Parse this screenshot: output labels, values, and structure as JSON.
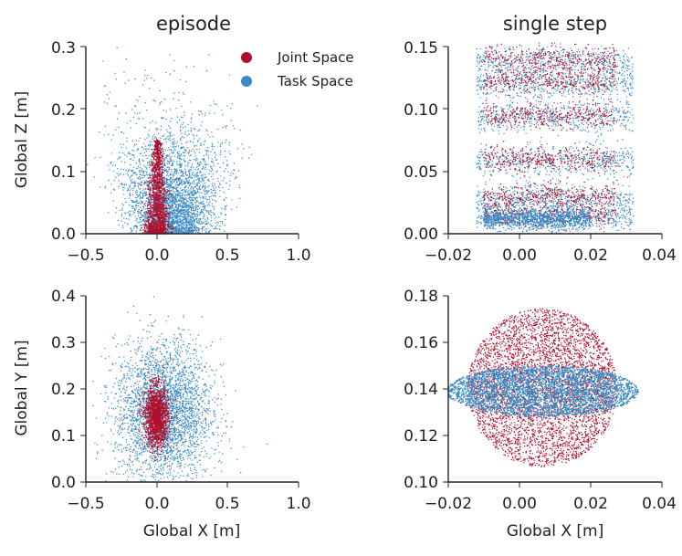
{
  "colors": {
    "joint": "#b0102e",
    "task": "#3a8bc4",
    "axis": "#222222"
  },
  "legend": [
    {
      "label": "Joint Space",
      "color": "#b0102e"
    },
    {
      "label": "Task Space",
      "color": "#3a8bc4"
    }
  ],
  "chart_data": [
    {
      "type": "scatter",
      "title": "episode",
      "xlabel": "",
      "ylabel": "Global Z [m]",
      "xlim": [
        -0.5,
        1.0
      ],
      "ylim": [
        0.0,
        0.3
      ],
      "xticks": [
        "−0.5",
        "0.0",
        "0.5",
        "1.0"
      ],
      "xtick_values": [
        -0.5,
        0.0,
        0.5,
        1.0
      ],
      "yticks": [
        "0.0",
        "0.1",
        "0.2",
        "0.3"
      ],
      "ytick_values": [
        0.0,
        0.1,
        0.2,
        0.3
      ],
      "legend": "top-right",
      "series": [
        {
          "name": "Task Space",
          "color": "#3a8bc4",
          "approx_center": [
            0.08,
            0.05
          ],
          "approx_spread": [
            0.2,
            0.08
          ]
        },
        {
          "name": "Joint Space",
          "color": "#b0102e",
          "approx_center": [
            0.0,
            0.04
          ],
          "approx_spread": [
            0.05,
            0.05
          ]
        }
      ]
    },
    {
      "type": "scatter",
      "title": "single step",
      "xlabel": "",
      "ylabel": "",
      "xlim": [
        -0.02,
        0.04
      ],
      "ylim": [
        0.0,
        0.15
      ],
      "xticks": [
        "−0.02",
        "0.00",
        "0.02",
        "0.04"
      ],
      "xtick_values": [
        -0.02,
        0.0,
        0.02,
        0.04
      ],
      "yticks": [
        "0.00",
        "0.05",
        "0.10",
        "0.15"
      ],
      "ytick_values": [
        0.0,
        0.05,
        0.1,
        0.15
      ],
      "bands_z": [
        0.013,
        0.028,
        0.058,
        0.093,
        0.12,
        0.138
      ],
      "series": [
        {
          "name": "Task Space",
          "color": "#3a8bc4",
          "approx_x_range": [
            -0.012,
            0.032
          ]
        },
        {
          "name": "Joint Space",
          "color": "#b0102e",
          "approx_x_range": [
            -0.01,
            0.027
          ]
        }
      ]
    },
    {
      "type": "scatter",
      "title": "",
      "xlabel": "Global X [m]",
      "ylabel": "Global Y [m]",
      "xlim": [
        -0.5,
        1.0
      ],
      "ylim": [
        0.0,
        0.4
      ],
      "xticks": [
        "−0.5",
        "0.0",
        "0.5",
        "1.0"
      ],
      "xtick_values": [
        -0.5,
        0.0,
        0.5,
        1.0
      ],
      "yticks": [
        "0.0",
        "0.1",
        "0.2",
        "0.3",
        "0.4"
      ],
      "ytick_values": [
        0.0,
        0.1,
        0.2,
        0.3,
        0.4
      ],
      "series": [
        {
          "name": "Task Space",
          "color": "#3a8bc4",
          "approx_center": [
            0.05,
            0.15
          ],
          "approx_spread": [
            0.2,
            0.07
          ]
        },
        {
          "name": "Joint Space",
          "color": "#b0102e",
          "approx_center": [
            0.0,
            0.14
          ],
          "approx_spread": [
            0.04,
            0.03
          ]
        }
      ]
    },
    {
      "type": "scatter",
      "title": "",
      "xlabel": "Global X [m]",
      "ylabel": "",
      "xlim": [
        -0.02,
        0.04
      ],
      "ylim": [
        0.1,
        0.18
      ],
      "xticks": [
        "−0.02",
        "0.00",
        "0.02",
        "0.04"
      ],
      "xtick_values": [
        -0.02,
        0.0,
        0.02,
        0.04
      ],
      "yticks": [
        "0.10",
        "0.12",
        "0.14",
        "0.16",
        "0.18"
      ],
      "ytick_values": [
        0.1,
        0.12,
        0.14,
        0.16,
        0.18
      ],
      "series": [
        {
          "name": "Joint Space",
          "color": "#b0102e",
          "approx_center": [
            0.006,
            0.14
          ],
          "approx_spread": [
            0.011,
            0.02
          ]
        },
        {
          "name": "Task Space",
          "color": "#3a8bc4",
          "approx_center": [
            0.006,
            0.139
          ],
          "approx_spread": [
            0.014,
            0.006
          ]
        }
      ]
    }
  ]
}
